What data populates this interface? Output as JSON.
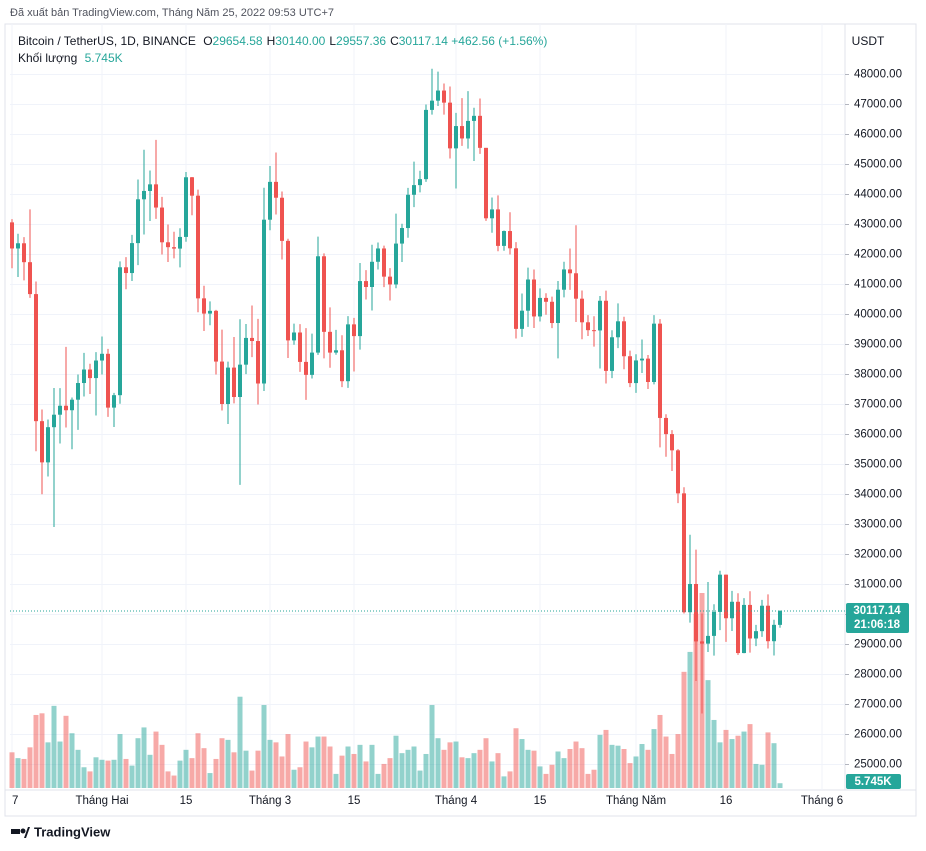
{
  "publish_note": "Đã xuất bản TradingView.com, Tháng Năm 25, 2022 09:53 UTC+7",
  "footer_brand": "TradingView",
  "chart_data": {
    "type": "candlestick",
    "legend": {
      "symbol": "Bitcoin / TetherUS, 1D, BINANCE",
      "items": [
        {
          "key": "O",
          "value": "29654.58"
        },
        {
          "key": "H",
          "value": "30140.00"
        },
        {
          "key": "L",
          "value": "29557.36"
        },
        {
          "key": "C",
          "value": "30117.14"
        }
      ],
      "change": "+462.56 (+1.56%)",
      "volume_title": "Khối lượng",
      "volume_value": "5.745K"
    },
    "y_axis_label": "USDT",
    "countdown": "21:06:18",
    "volume_label": "5.745K",
    "up_color": "#26a69a",
    "down_color": "#ef5350",
    "grid": true,
    "x": [
      "01-17",
      "01-18",
      "01-19",
      "01-20",
      "01-21",
      "01-22",
      "01-23",
      "01-24",
      "01-25",
      "01-26",
      "01-27",
      "01-28",
      "01-29",
      "01-30",
      "01-31",
      "02-01",
      "02-02",
      "02-03",
      "02-04",
      "02-05",
      "02-06",
      "02-07",
      "02-08",
      "02-09",
      "02-10",
      "02-11",
      "02-12",
      "02-13",
      "02-14",
      "02-15",
      "02-16",
      "02-17",
      "02-18",
      "02-19",
      "02-20",
      "02-21",
      "02-22",
      "02-23",
      "02-24",
      "02-25",
      "02-26",
      "02-27",
      "02-28",
      "03-01",
      "03-02",
      "03-03",
      "03-04",
      "03-05",
      "03-06",
      "03-07",
      "03-08",
      "03-09",
      "03-10",
      "03-11",
      "03-12",
      "03-13",
      "03-14",
      "03-15",
      "03-16",
      "03-17",
      "03-18",
      "03-19",
      "03-20",
      "03-21",
      "03-22",
      "03-23",
      "03-24",
      "03-25",
      "03-26",
      "03-27",
      "03-28",
      "03-29",
      "03-30",
      "03-31",
      "04-01",
      "04-02",
      "04-03",
      "04-04",
      "04-05",
      "04-06",
      "04-07",
      "04-08",
      "04-09",
      "04-10",
      "04-11",
      "04-12",
      "04-13",
      "04-14",
      "04-15",
      "04-16",
      "04-17",
      "04-18",
      "04-19",
      "04-20",
      "04-21",
      "04-22",
      "04-23",
      "04-24",
      "04-25",
      "04-26",
      "04-27",
      "04-28",
      "04-29",
      "04-30",
      "05-01",
      "05-02",
      "05-03",
      "05-04",
      "05-05",
      "05-06",
      "05-07",
      "05-08",
      "05-09",
      "05-10",
      "05-11",
      "05-12",
      "05-13",
      "05-14",
      "05-15",
      "05-16",
      "05-17",
      "05-18",
      "05-19",
      "05-20",
      "05-21",
      "05-22",
      "05-23",
      "05-24",
      "05-25"
    ],
    "open": [
      43071,
      42201,
      42374,
      41744,
      40680,
      36445,
      35071,
      36244,
      36660,
      36958,
      36809,
      37160,
      37716,
      38166,
      37881,
      38466,
      38690,
      36896,
      37311,
      41574,
      41382,
      42380,
      43840,
      44118,
      44338,
      43565,
      42407,
      42244,
      42197,
      42586,
      44575,
      43961,
      40538,
      40030,
      40122,
      38431,
      37017,
      38230,
      37250,
      38328,
      39219,
      39116,
      37700,
      43160,
      44421,
      43892,
      42454,
      39137,
      39400,
      38420,
      37988,
      38730,
      41941,
      39422,
      38730,
      38807,
      37777,
      39671,
      39280,
      41114,
      40917,
      41757,
      42201,
      41262,
      41002,
      42364,
      42882,
      43991,
      44313,
      44512,
      46820,
      47128,
      47465,
      47062,
      45538,
      46281,
      45868,
      46453,
      46622,
      45555,
      43207,
      43503,
      42287,
      42782,
      42207,
      39521,
      40127,
      41166,
      39935,
      40553,
      40424,
      39716,
      40826,
      41502,
      41374,
      40527,
      39740,
      39478,
      39469,
      40458,
      38120,
      39241,
      39773,
      38609,
      37714,
      38469,
      38529,
      37750,
      39695,
      36552,
      36013,
      35472,
      34038,
      30076,
      31017,
      29103,
      29029,
      29287,
      30086,
      31328,
      29875,
      30424,
      28715,
      30319,
      29201,
      29445,
      30293,
      29110,
      29654.58
    ],
    "high": [
      43180,
      42690,
      42580,
      43505,
      41100,
      36835,
      36499,
      37550,
      37545,
      38919,
      37234,
      38000,
      38720,
      38359,
      38744,
      39265,
      38855,
      37387,
      41772,
      41913,
      42656,
      44500,
      45492,
      44799,
      45821,
      43920,
      43000,
      42760,
      42876,
      44751,
      44585,
      44164,
      40959,
      40436,
      40155,
      39494,
      38429,
      39249,
      39843,
      39683,
      40300,
      39855,
      44225,
      44949,
      45400,
      44101,
      42527,
      39694,
      39680,
      39547,
      39362,
      42594,
      42039,
      40236,
      39486,
      39309,
      39947,
      39887,
      41718,
      41478,
      42325,
      42400,
      42296,
      41544,
      43361,
      43025,
      44220,
      45094,
      44792,
      46999,
      48190,
      48096,
      47700,
      47600,
      46720,
      47213,
      47444,
      46890,
      47200,
      45555,
      43900,
      43970,
      42800,
      43410,
      42414,
      40700,
      41561,
      41500,
      40870,
      40709,
      40595,
      41116,
      41760,
      42199,
      42976,
      40798,
      39980,
      39940,
      40616,
      40797,
      39474,
      40372,
      39925,
      38795,
      38675,
      39167,
      38651,
      39980,
      39845,
      36675,
      36146,
      35514,
      34243,
      32658,
      32162,
      30032,
      31083,
      30343,
      31460,
      31328,
      30788,
      30709,
      30545,
      30777,
      29656,
      30487,
      30670,
      29827,
      30140
    ],
    "low": [
      41540,
      41250,
      41138,
      40553,
      35440,
      34008,
      34601,
      32917,
      35701,
      36234,
      35507,
      36155,
      37268,
      37351,
      36632,
      38000,
      36586,
      36250,
      37026,
      40843,
      41116,
      41645,
      42666,
      43117,
      43188,
      42000,
      41748,
      41870,
      41570,
      42427,
      43310,
      40073,
      39450,
      39640,
      38000,
      36800,
      36350,
      37036,
      34322,
      38014,
      38580,
      37000,
      37450,
      42809,
      43334,
      41832,
      38550,
      38993,
      38088,
      37155,
      37867,
      38656,
      38539,
      38223,
      38660,
      37578,
      37555,
      38098,
      38828,
      40500,
      40135,
      41499,
      40911,
      40467,
      40875,
      41751,
      42560,
      43579,
      44071,
      44421,
      46663,
      46950,
      46664,
      45200,
      44200,
      45620,
      45530,
      45118,
      45353,
      43121,
      42727,
      42107,
      42125,
      42000,
      39200,
      39254,
      39588,
      39551,
      39766,
      39991,
      39546,
      38536,
      40571,
      40820,
      39751,
      39177,
      39285,
      38929,
      38200,
      37702,
      37881,
      38881,
      38176,
      37578,
      37386,
      38052,
      37517,
      37670,
      35571,
      35258,
      34785,
      33714,
      30033,
      29730,
      27785,
      26700,
      28751,
      28630,
      29480,
      29087,
      29450,
      28654,
      28708,
      28730,
      28947,
      29255,
      28866,
      28632,
      29557.36
    ],
    "close": [
      42201,
      42374,
      41744,
      40680,
      36445,
      35071,
      36244,
      36660,
      36958,
      36809,
      37160,
      37716,
      38166,
      37881,
      38466,
      38690,
      36896,
      37311,
      41574,
      41382,
      42380,
      43840,
      44118,
      44338,
      43565,
      42407,
      42244,
      42197,
      42586,
      44575,
      43961,
      40538,
      40030,
      40122,
      38431,
      37017,
      38230,
      37250,
      38328,
      39219,
      39116,
      37700,
      43160,
      44421,
      43892,
      42454,
      39137,
      39400,
      38420,
      37988,
      38730,
      41941,
      39422,
      38730,
      38807,
      37777,
      39671,
      39280,
      41114,
      40917,
      41757,
      42201,
      41262,
      41002,
      42364,
      42882,
      43991,
      44313,
      44512,
      46820,
      47128,
      47465,
      47062,
      45538,
      46281,
      45868,
      46453,
      46622,
      45555,
      43207,
      43503,
      42287,
      42782,
      42207,
      39521,
      40127,
      41166,
      39935,
      40553,
      40424,
      39716,
      40826,
      41502,
      41374,
      40527,
      39740,
      39478,
      39469,
      40458,
      38120,
      39241,
      39773,
      38609,
      37714,
      38469,
      38529,
      37750,
      39695,
      36552,
      36013,
      35472,
      34038,
      30076,
      31017,
      29103,
      29029,
      29287,
      30086,
      31328,
      29875,
      30424,
      28715,
      30319,
      29201,
      29445,
      30293,
      29110,
      29655,
      30117.14
    ],
    "volume": [
      43,
      36,
      35,
      49,
      88,
      90,
      55,
      99,
      56,
      87,
      66,
      46,
      25,
      20,
      37,
      34,
      33,
      34,
      65,
      35,
      27,
      60,
      73,
      40,
      68,
      52,
      20,
      15,
      33,
      46,
      36,
      66,
      48,
      18,
      35,
      60,
      58,
      43,
      110,
      45,
      21,
      45,
      100,
      58,
      55,
      38,
      65,
      22,
      25,
      56,
      49,
      62,
      62,
      50,
      17,
      39,
      50,
      41,
      52,
      32,
      52,
      17,
      29,
      36,
      63,
      42,
      46,
      50,
      21,
      41,
      100,
      60,
      46,
      55,
      56,
      37,
      36,
      42,
      46,
      60,
      32,
      42,
      14,
      20,
      72,
      59,
      46,
      45,
      26,
      17,
      28,
      44,
      36,
      47,
      56,
      48,
      17,
      22,
      64,
      70,
      52,
      51,
      47,
      30,
      38,
      53,
      46,
      71,
      88,
      62,
      41,
      65,
      140,
      164,
      210,
      235,
      130,
      82,
      55,
      70,
      59,
      63,
      68,
      77,
      29,
      28,
      67,
      54,
      5.745
    ],
    "ylim": [
      24150,
      49550
    ],
    "yticks": [
      {
        "value": 25000,
        "label": "25000.00"
      },
      {
        "value": 26000,
        "label": "26000.00"
      },
      {
        "value": 27000,
        "label": "27000.00"
      },
      {
        "value": 28000,
        "label": "28000.00"
      },
      {
        "value": 29000,
        "label": "29000.00"
      },
      {
        "value": 30000,
        "label": "30000.00"
      },
      {
        "value": 31000,
        "label": "31000.00"
      },
      {
        "value": 32000,
        "label": "32000.00"
      },
      {
        "value": 33000,
        "label": "33000.00"
      },
      {
        "value": 34000,
        "label": "34000.00"
      },
      {
        "value": 35000,
        "label": "35000.00"
      },
      {
        "value": 36000,
        "label": "36000.00"
      },
      {
        "value": 37000,
        "label": "37000.00"
      },
      {
        "value": 38000,
        "label": "38000.00"
      },
      {
        "value": 39000,
        "label": "39000.00"
      },
      {
        "value": 40000,
        "label": "40000.00"
      },
      {
        "value": 41000,
        "label": "41000.00"
      },
      {
        "value": 42000,
        "label": "42000.00"
      },
      {
        "value": 43000,
        "label": "43000.00"
      },
      {
        "value": 44000,
        "label": "44000.00"
      },
      {
        "value": 45000,
        "label": "45000.00"
      },
      {
        "value": 46000,
        "label": "46000.00"
      },
      {
        "value": 47000,
        "label": "47000.00"
      },
      {
        "value": 48000,
        "label": "48000.00"
      }
    ],
    "xticks": [
      {
        "value": "01-17",
        "label": "7"
      },
      {
        "value": "02-01",
        "label": "Tháng Hai"
      },
      {
        "value": "02-15",
        "label": "15"
      },
      {
        "value": "03-01",
        "label": "Tháng 3"
      },
      {
        "value": "03-15",
        "label": "15"
      },
      {
        "value": "04-01",
        "label": "Tháng 4"
      },
      {
        "value": "04-15",
        "label": "15"
      },
      {
        "value": "05-01",
        "label": "Tháng Năm"
      },
      {
        "value": "05-16",
        "label": "16"
      },
      {
        "value": "06-01",
        "label": "Tháng 6"
      }
    ]
  }
}
